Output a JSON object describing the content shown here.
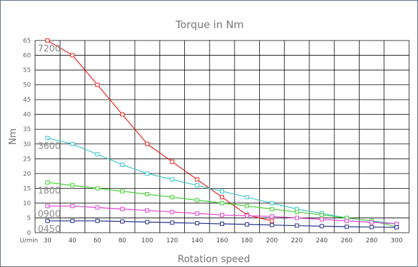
{
  "chart_data": {
    "type": "line",
    "title": "Torque in Nm",
    "subtitle": "-",
    "xlabel": "Rotation speed",
    "ylabel": "Nm",
    "x_unit_label": "U/min",
    "x": [
      30,
      40,
      60,
      80,
      100,
      120,
      140,
      160,
      180,
      200,
      220,
      240,
      260,
      280,
      300
    ],
    "ylim": [
      0,
      65
    ],
    "yticks": [
      0,
      5,
      10,
      15,
      20,
      25,
      30,
      35,
      40,
      45,
      50,
      55,
      60,
      65
    ],
    "grid": true,
    "series": [
      {
        "name": "7200",
        "color": "#e8231e",
        "points": [
          [
            30,
            65
          ],
          [
            40,
            60
          ],
          [
            60,
            50
          ],
          [
            80,
            40
          ],
          [
            100,
            30
          ],
          [
            120,
            24
          ],
          [
            140,
            18
          ],
          [
            160,
            12
          ],
          [
            180,
            6
          ],
          [
            200,
            4
          ]
        ]
      },
      {
        "name": "3600",
        "color": "#3cc6c8",
        "points": [
          [
            30,
            32
          ],
          [
            40,
            30
          ],
          [
            60,
            26.5
          ],
          [
            80,
            23
          ],
          [
            100,
            20
          ],
          [
            120,
            18
          ],
          [
            140,
            16
          ],
          [
            160,
            14
          ],
          [
            180,
            12
          ],
          [
            200,
            10
          ],
          [
            220,
            8
          ],
          [
            240,
            6.5
          ],
          [
            260,
            5
          ],
          [
            280,
            4
          ],
          [
            300,
            3
          ]
        ]
      },
      {
        "name": "1800",
        "color": "#3dd12c",
        "points": [
          [
            30,
            17
          ],
          [
            40,
            16
          ],
          [
            60,
            15
          ],
          [
            80,
            14
          ],
          [
            100,
            13
          ],
          [
            120,
            12
          ],
          [
            140,
            11
          ],
          [
            160,
            10
          ],
          [
            180,
            9
          ],
          [
            200,
            8
          ],
          [
            220,
            7
          ],
          [
            240,
            6
          ],
          [
            260,
            5
          ],
          [
            280,
            4
          ],
          [
            300,
            2
          ]
        ]
      },
      {
        "name": "0900",
        "color": "#e23dd2",
        "points": [
          [
            30,
            9
          ],
          [
            40,
            9
          ],
          [
            60,
            8.5
          ],
          [
            80,
            8
          ],
          [
            100,
            7.5
          ],
          [
            120,
            7
          ],
          [
            140,
            6.5
          ],
          [
            160,
            6
          ],
          [
            180,
            5.7
          ],
          [
            200,
            5.5
          ],
          [
            220,
            5
          ],
          [
            240,
            4.5
          ],
          [
            260,
            4
          ],
          [
            280,
            3.5
          ],
          [
            300,
            3
          ]
        ]
      },
      {
        "name": "0450",
        "color": "#1e2a8c",
        "points": [
          [
            30,
            4
          ],
          [
            40,
            4
          ],
          [
            60,
            4
          ],
          [
            80,
            3.8
          ],
          [
            100,
            3.6
          ],
          [
            120,
            3.4
          ],
          [
            140,
            3.2
          ],
          [
            160,
            3
          ],
          [
            180,
            2.8
          ],
          [
            200,
            2.6
          ],
          [
            220,
            2.4
          ],
          [
            240,
            2.2
          ],
          [
            260,
            2
          ],
          [
            280,
            1.9
          ],
          [
            300,
            1.8
          ]
        ]
      }
    ]
  }
}
